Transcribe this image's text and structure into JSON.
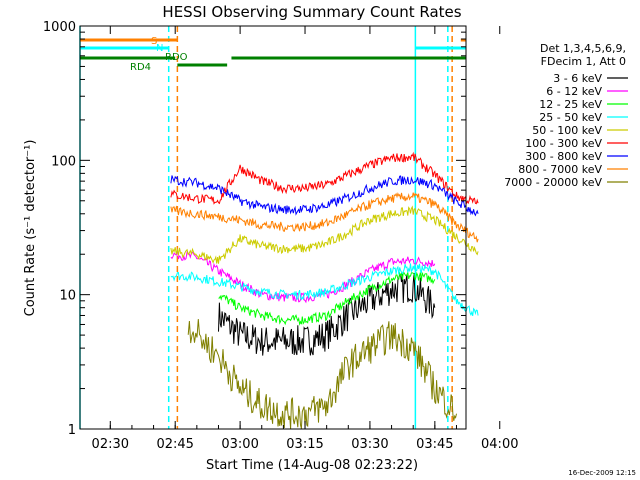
{
  "chart_data": {
    "type": "line",
    "title": "HESSI Observing Summary Count Rates",
    "xlabel": "Start Time (14-Aug-08 02:23:22)",
    "ylabel": "Count Rate (s⁻¹ detector⁻¹)",
    "ylim": [
      1,
      1000
    ],
    "yscale": "log",
    "xlim_minutes": [
      -97,
      -7.8
    ],
    "x_ticks": [
      "02:30",
      "02:45",
      "03:00",
      "03:15",
      "03:30",
      "03:45",
      "04:00"
    ],
    "y_ticks": [
      "1",
      "10",
      "100",
      "1000"
    ],
    "legend_header": [
      "Det 1,3,4,5,6,9,",
      "FDecim 1, Att 0"
    ],
    "legend_position": "right",
    "footer": "16-Dec-2009 12:15",
    "flags": [
      {
        "label": "S",
        "color": "#ff8000"
      },
      {
        "label": "N",
        "color": "#00ffff"
      },
      {
        "label": "RD4",
        "color": "#008000"
      },
      {
        "label": "RDO",
        "color": "#008000"
      }
    ],
    "series": [
      {
        "name": "3 - 6 keV",
        "color": "#000000",
        "x": [
          "02:48",
          "02:55",
          "03:00",
          "03:05",
          "03:10",
          "03:15",
          "03:20",
          "03:25",
          "03:30",
          "03:35",
          "03:40",
          "03:45"
        ],
        "values": [
          null,
          7,
          5,
          4.5,
          4.5,
          4.5,
          5,
          7,
          9,
          11,
          11.5,
          8
        ]
      },
      {
        "name": "6 - 12 keV",
        "color": "#ff00ff",
        "x": [
          "02:44",
          "02:50",
          "02:55",
          "03:00",
          "03:05",
          "03:10",
          "03:15",
          "03:20",
          "03:25",
          "03:30",
          "03:35",
          "03:40",
          "03:45"
        ],
        "values": [
          20,
          19,
          15,
          12,
          10,
          9.5,
          9.5,
          10,
          12,
          15,
          17.5,
          18,
          17
        ]
      },
      {
        "name": "12 - 25 keV",
        "color": "#00ff00",
        "x": [
          "02:48",
          "02:55",
          "03:00",
          "03:05",
          "03:10",
          "03:15",
          "03:20",
          "03:25",
          "03:30",
          "03:35",
          "03:40",
          "03:45"
        ],
        "values": [
          null,
          10,
          8,
          7,
          6.5,
          6.5,
          7,
          9,
          11,
          13,
          14,
          13
        ]
      },
      {
        "name": "25 - 50 keV",
        "color": "#00ffff",
        "x": [
          "02:44",
          "02:50",
          "02:55",
          "03:00",
          "03:05",
          "03:10",
          "03:15",
          "03:20",
          "03:25",
          "03:30",
          "03:35",
          "03:40",
          "03:45",
          "03:50",
          "03:55"
        ],
        "values": [
          14,
          13.5,
          12.5,
          11.5,
          10.5,
          10,
          10,
          10.5,
          12,
          13.5,
          15,
          16,
          15,
          9,
          7
        ]
      },
      {
        "name": "50 - 100 keV",
        "color": "#cccc00",
        "x": [
          "02:44",
          "02:50",
          "02:55",
          "03:00",
          "03:05",
          "03:10",
          "03:15",
          "03:20",
          "03:25",
          "03:30",
          "03:35",
          "03:40",
          "03:45",
          "03:50",
          "03:55"
        ],
        "values": [
          21,
          20,
          18,
          26,
          23,
          22,
          22,
          24,
          29,
          36,
          40,
          42,
          36,
          27,
          21
        ]
      },
      {
        "name": "100 - 300 keV",
        "color": "#ff0000",
        "x": [
          "02:44",
          "02:50",
          "02:55",
          "03:00",
          "03:05",
          "03:10",
          "03:15",
          "03:20",
          "03:25",
          "03:30",
          "03:35",
          "03:40",
          "03:45",
          "03:50",
          "03:55"
        ],
        "values": [
          56,
          52,
          50,
          88,
          70,
          62,
          62,
          66,
          78,
          92,
          104,
          106,
          78,
          54,
          48
        ]
      },
      {
        "name": "300 - 800 keV",
        "color": "#0000ff",
        "x": [
          "02:44",
          "02:50",
          "02:55",
          "03:00",
          "03:05",
          "03:10",
          "03:15",
          "03:20",
          "03:25",
          "03:30",
          "03:35",
          "03:40",
          "03:45",
          "03:50",
          "03:55"
        ],
        "values": [
          72,
          68,
          62,
          50,
          45,
          43,
          43,
          46,
          53,
          62,
          70,
          72,
          65,
          49,
          40
        ]
      },
      {
        "name": "800 - 7000 keV",
        "color": "#ff8000",
        "x": [
          "02:44",
          "02:50",
          "02:55",
          "03:00",
          "03:05",
          "03:10",
          "03:15",
          "03:20",
          "03:25",
          "03:30",
          "03:35",
          "03:40",
          "03:45",
          "03:50",
          "03:55"
        ],
        "values": [
          42,
          40,
          38,
          36,
          33,
          32,
          32,
          34,
          40,
          47,
          52,
          54,
          47,
          33,
          26
        ]
      },
      {
        "name": "7000 - 20000 keV",
        "color": "#808000",
        "x": [
          "02:48",
          "02:55",
          "03:00",
          "03:05",
          "03:10",
          "03:15",
          "03:20",
          "03:25",
          "03:30",
          "03:35",
          "03:40",
          "03:45",
          "03:50"
        ],
        "values": [
          6,
          3.5,
          2,
          1.5,
          1.3,
          1.3,
          1.5,
          3,
          4,
          5,
          4,
          2,
          1.3
        ]
      }
    ]
  }
}
